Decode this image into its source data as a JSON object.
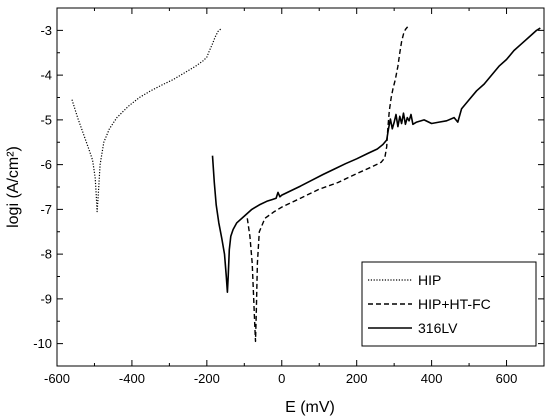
{
  "chart_data": {
    "type": "line",
    "title": "",
    "xlabel": "E (mV)",
    "ylabel": "logi (A/cm²)",
    "xlim": [
      -600,
      700
    ],
    "ylim": [
      -10.5,
      -2.5
    ],
    "x_ticks": [
      -600,
      -400,
      -200,
      0,
      200,
      400,
      600
    ],
    "x_tick_labels": [
      "-600",
      "-400",
      "-200",
      "0",
      "200",
      "400",
      "600"
    ],
    "y_ticks": [
      -10,
      -9,
      -8,
      -7,
      -6,
      -5,
      -4,
      -3
    ],
    "y_tick_labels": [
      "-10",
      "-9",
      "-8",
      "-7",
      "-6",
      "-5",
      "-4",
      "-3"
    ],
    "grid": false,
    "legend_position": "bottom-right",
    "series": [
      {
        "name": "HIP",
        "style": "dotted",
        "color": "#000000",
        "x": [
          -560,
          -545,
          -530,
          -515,
          -505,
          -498,
          -495,
          -493,
          -490,
          -485,
          -475,
          -460,
          -440,
          -410,
          -380,
          -350,
          -320,
          -290,
          -260,
          -230,
          -210,
          -200,
          -193,
          -185,
          -178,
          -170,
          -160
        ],
        "y": [
          -4.55,
          -4.95,
          -5.3,
          -5.65,
          -5.9,
          -6.3,
          -6.7,
          -7.05,
          -6.7,
          -6.0,
          -5.5,
          -5.2,
          -4.95,
          -4.7,
          -4.5,
          -4.35,
          -4.22,
          -4.1,
          -3.95,
          -3.8,
          -3.68,
          -3.6,
          -3.45,
          -3.3,
          -3.15,
          -3.02,
          -2.95
        ]
      },
      {
        "name": "HIP+HT-FC",
        "style": "dashed",
        "color": "#000000",
        "x": [
          -92,
          -85,
          -79,
          -75,
          -72,
          -70,
          -68,
          -65,
          -60,
          -45,
          -20,
          0,
          50,
          100,
          150,
          200,
          240,
          265,
          275,
          280,
          283,
          287,
          292,
          297,
          303,
          310,
          315,
          320,
          325,
          330,
          336
        ],
        "y": [
          -7.2,
          -7.6,
          -8.2,
          -9.0,
          -9.6,
          -9.95,
          -9.3,
          -8.2,
          -7.5,
          -7.2,
          -7.05,
          -6.95,
          -6.75,
          -6.55,
          -6.4,
          -6.2,
          -6.05,
          -5.95,
          -5.85,
          -5.6,
          -5.2,
          -4.8,
          -4.5,
          -4.3,
          -4.1,
          -3.8,
          -3.5,
          -3.25,
          -3.08,
          -2.98,
          -2.92
        ]
      },
      {
        "name": "316LV",
        "style": "solid",
        "color": "#000000",
        "x": [
          -185,
          -180,
          -175,
          -168,
          -160,
          -153,
          -148,
          -145,
          -143,
          -140,
          -136,
          -130,
          -120,
          -100,
          -80,
          -60,
          -40,
          -25,
          -15,
          -10,
          -5,
          0,
          20,
          50,
          80,
          110,
          140,
          170,
          200,
          230,
          255,
          270,
          280,
          285,
          290,
          295,
          300,
          305,
          310,
          315,
          320,
          325,
          330,
          335,
          340,
          345,
          350,
          360,
          380,
          400,
          420,
          440,
          460,
          470,
          480,
          500,
          520,
          540,
          560,
          580,
          600,
          620,
          640,
          660,
          680,
          690
        ],
        "y": [
          -5.8,
          -6.4,
          -6.9,
          -7.3,
          -7.65,
          -8.0,
          -8.5,
          -8.85,
          -8.5,
          -7.9,
          -7.6,
          -7.45,
          -7.3,
          -7.15,
          -7.0,
          -6.9,
          -6.82,
          -6.78,
          -6.75,
          -6.62,
          -6.72,
          -6.68,
          -6.6,
          -6.48,
          -6.35,
          -6.22,
          -6.1,
          -5.98,
          -5.87,
          -5.75,
          -5.65,
          -5.55,
          -5.45,
          -5.2,
          -4.98,
          -5.2,
          -5.05,
          -4.88,
          -5.15,
          -4.92,
          -5.08,
          -4.85,
          -5.1,
          -4.95,
          -5.02,
          -4.88,
          -5.1,
          -5.05,
          -5.0,
          -5.08,
          -5.05,
          -5.02,
          -4.95,
          -5.05,
          -4.75,
          -4.55,
          -4.35,
          -4.2,
          -4.0,
          -3.8,
          -3.65,
          -3.45,
          -3.3,
          -3.15,
          -3.0,
          -2.95
        ]
      }
    ]
  }
}
